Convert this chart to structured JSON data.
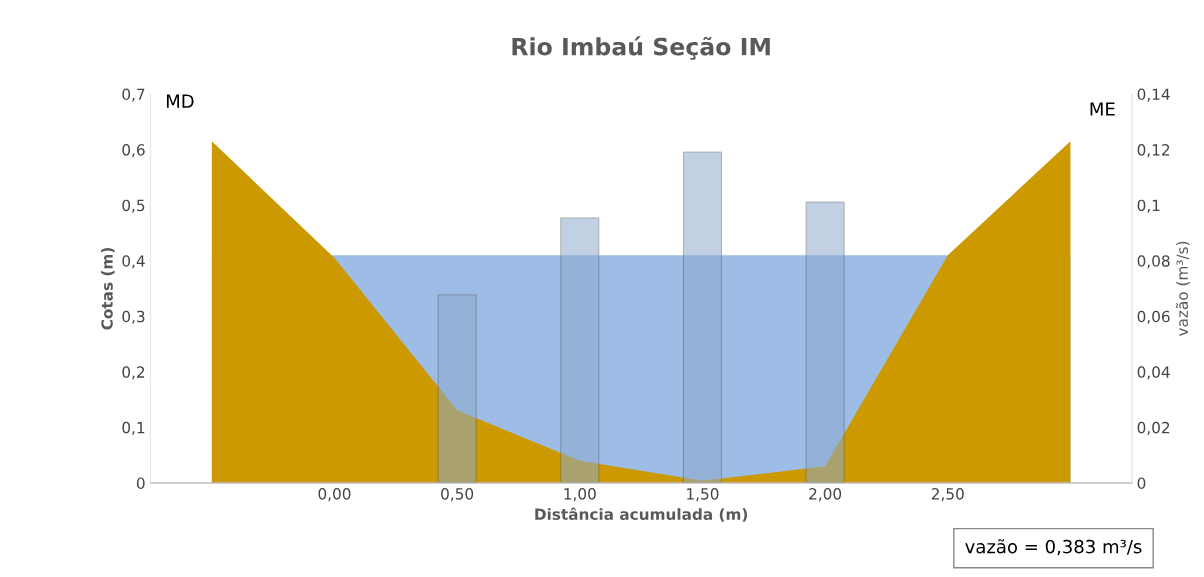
{
  "chart_data": {
    "type": "area",
    "title": "Rio Imbaú Seção IM",
    "xlabel": "Distância acumulada (m)",
    "ylabel": "Cotas (m)",
    "y2label": "vazão (m³/s)",
    "categories": [
      null,
      "0,00",
      "0,50",
      "1,00",
      "1,50",
      "2,00",
      "2,50",
      null
    ],
    "series": [
      {
        "color": "#9dbde6",
        "values": [
          0.41,
          0.41,
          0.41,
          0.41,
          0.41,
          0.41,
          0.41,
          0.41
        ]
      },
      {
        "color": "#cc9900",
        "values": [
          0.615,
          0.405,
          0.131,
          0.04,
          0.004,
          0.03,
          0.41,
          0.615
        ]
      },
      {
        "type": "bar",
        "axis": "y2",
        "color": "#8eaacb",
        "values": [
          null,
          null,
          0.0677,
          0.0954,
          0.1191,
          0.1011,
          null,
          null
        ]
      }
    ],
    "ylim": [
      0,
      0.7
    ],
    "yticks": [
      0,
      {
        "value": 0.1,
        "label": "0,1"
      },
      {
        "value": 0.2,
        "label": "0,2"
      },
      {
        "value": 0.3,
        "label": "0,3"
      },
      {
        "value": 0.4,
        "label": "0,4"
      },
      {
        "value": 0.5,
        "label": "0,5"
      },
      {
        "value": 0.6,
        "label": "0,6"
      },
      {
        "value": 0.7,
        "label": "0,7"
      }
    ],
    "y2lim": [
      0,
      0.14
    ],
    "y2ticks": [
      0,
      {
        "value": 0.02,
        "label": "0,02"
      },
      {
        "value": 0.04,
        "label": "0,04"
      },
      {
        "value": 0.06,
        "label": "0,06"
      },
      {
        "value": 0.08,
        "label": "0,08"
      },
      {
        "value": 0.1,
        "label": "0,1"
      },
      {
        "value": 0.12,
        "label": "0,12"
      },
      {
        "value": 0.14,
        "label": "0,14"
      }
    ],
    "annotations": [
      "MD",
      "ME",
      "vazão = 0,383 m³/s"
    ],
    "grid": false,
    "legend": false
  }
}
